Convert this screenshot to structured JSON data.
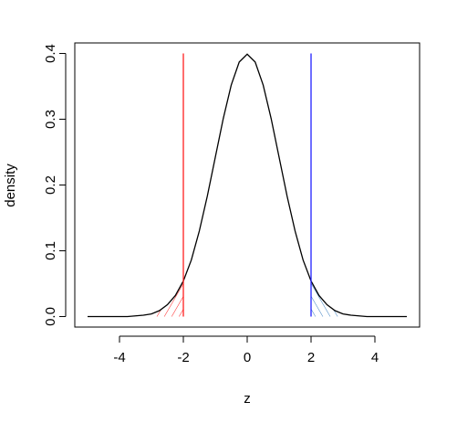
{
  "chart_data": {
    "type": "line",
    "x_label": "z",
    "y_label": "density",
    "x": [
      -5,
      -4.75,
      -4.5,
      -4.25,
      -4,
      -3.75,
      -3.5,
      -3.25,
      -3,
      -2.75,
      -2.5,
      -2.25,
      -2,
      -1.75,
      -1.5,
      -1.25,
      -1,
      -0.75,
      -0.5,
      -0.25,
      0,
      0.25,
      0.5,
      0.75,
      1,
      1.25,
      1.5,
      1.75,
      2,
      2.25,
      2.5,
      2.75,
      3,
      3.25,
      3.5,
      3.75,
      4,
      4.25,
      4.5,
      4.75,
      5
    ],
    "series": [
      {
        "color": "#000000",
        "values": [
          0,
          0,
          0,
          0,
          0,
          0,
          0.001,
          0.002,
          0.004,
          0.009,
          0.018,
          0.032,
          0.054,
          0.086,
          0.13,
          0.183,
          0.242,
          0.301,
          0.352,
          0.387,
          0.399,
          0.387,
          0.352,
          0.301,
          0.242,
          0.183,
          0.13,
          0.086,
          0.054,
          0.032,
          0.018,
          0.009,
          0.004,
          0.002,
          0.001,
          0,
          0,
          0,
          0,
          0,
          0
        ]
      }
    ],
    "vlines": [
      {
        "x": -2,
        "from": 0,
        "to": 0.4,
        "color": "#ff2020"
      },
      {
        "x": 2,
        "from": 0,
        "to": 0.4,
        "color": "#2020ff"
      }
    ],
    "shaded_regions": [
      {
        "from": -3,
        "to": -2,
        "color": "#ff2020"
      },
      {
        "from": 2,
        "to": 3,
        "color": "#3a7fc0"
      }
    ],
    "xlim": [
      -5.4,
      5.4
    ],
    "ylim": [
      -0.016,
      0.416
    ],
    "xticks": [
      -4,
      -2,
      0,
      2,
      4
    ],
    "yticks": [
      {
        "value": 0,
        "label": "0.0"
      },
      0.1,
      0.2,
      0.3,
      0.4
    ]
  }
}
